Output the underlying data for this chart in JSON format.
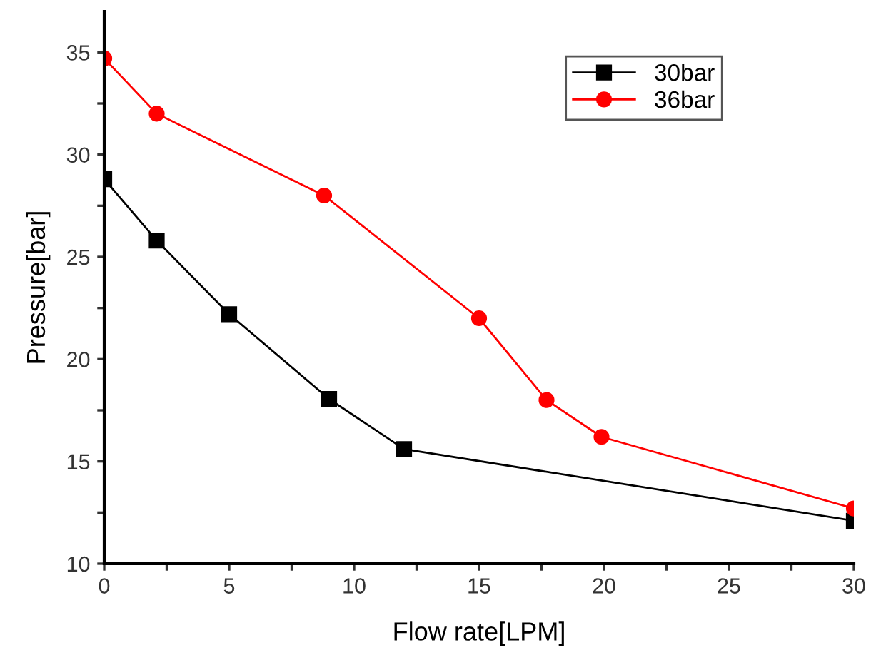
{
  "chart_data": {
    "type": "line",
    "xlabel": "Flow rate[LPM]",
    "ylabel": "Pressure[bar]",
    "xlim": [
      0,
      30
    ],
    "ylim": [
      10,
      37
    ],
    "xticks": [
      0,
      {
        "value": 2.5,
        "label": null
      },
      5,
      {
        "value": 7.5,
        "label": null
      },
      10,
      {
        "value": 12.5,
        "label": null
      },
      15,
      {
        "value": 17.5,
        "label": null
      },
      20,
      {
        "value": 22.5,
        "label": null
      },
      25,
      {
        "value": 27.5,
        "label": null
      },
      30
    ],
    "yticks": [
      10,
      {
        "value": 12.5,
        "label": null
      },
      15,
      {
        "value": 17.5,
        "label": null
      },
      20,
      {
        "value": 22.5,
        "label": null
      },
      25,
      {
        "value": 27.5,
        "label": null
      },
      30,
      {
        "value": 32.5,
        "label": null
      },
      35
    ],
    "grid": false,
    "legend": "top right",
    "series": [
      {
        "name": "30bar",
        "color": "#000000",
        "marker": "square",
        "x": [
          0,
          2.1,
          5,
          9,
          12,
          30
        ],
        "values": [
          28.8,
          25.8,
          22.2,
          18.05,
          15.6,
          12.1
        ]
      },
      {
        "name": "36bar",
        "color": "#ff0000",
        "marker": "circle",
        "x": [
          0,
          2.1,
          8.8,
          15,
          17.7,
          19.9,
          30
        ],
        "values": [
          34.7,
          32,
          28,
          22,
          18,
          16.2,
          12.7
        ]
      }
    ]
  }
}
